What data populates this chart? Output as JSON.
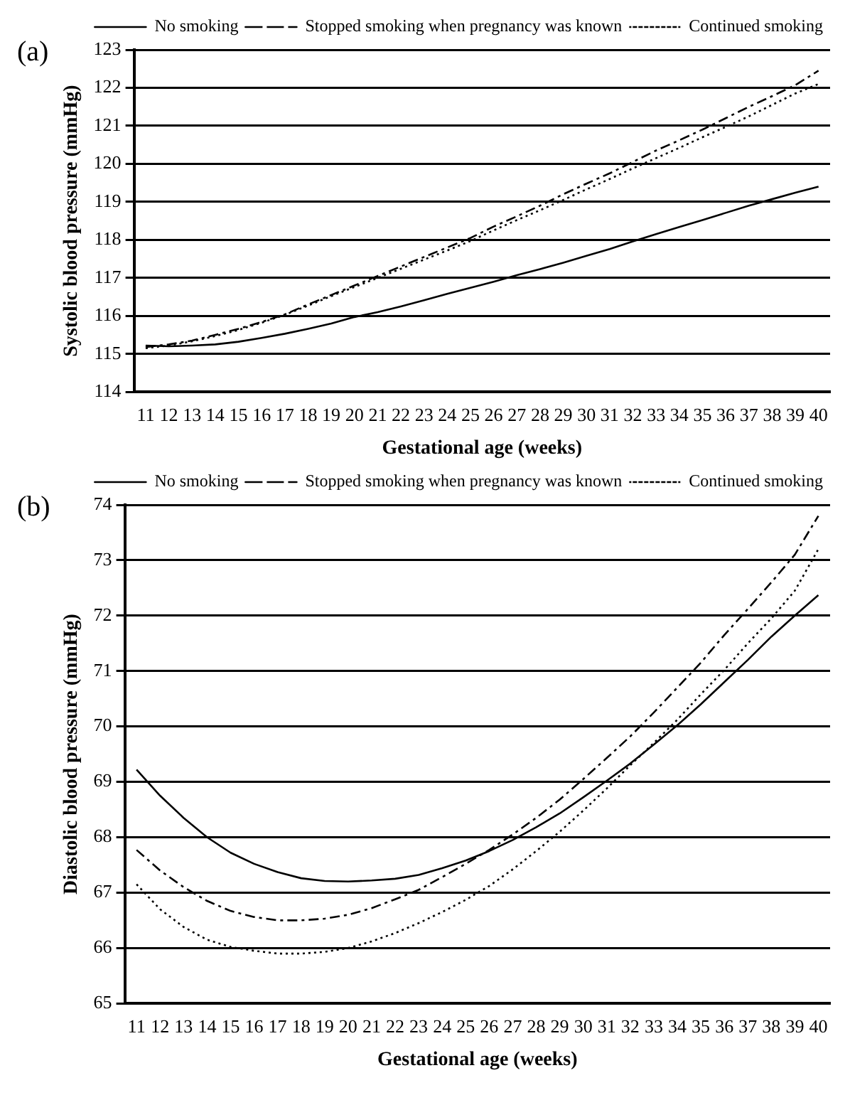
{
  "chart_data": [
    {
      "type": "line",
      "annotations": [
        "(a)"
      ],
      "xlabel": "Gestational age (weeks)",
      "ylabel": "Systolic blood pressure (mmHg)",
      "categories": [
        "11",
        "12",
        "13",
        "14",
        "15",
        "16",
        "17",
        "18",
        "19",
        "20",
        "21",
        "22",
        "23",
        "24",
        "25",
        "26",
        "27",
        "28",
        "29",
        "30",
        "31",
        "32",
        "33",
        "34",
        "35",
        "36",
        "37",
        "38",
        "39",
        "40"
      ],
      "ylim": [
        114,
        123
      ],
      "yticks": [
        114,
        115,
        116,
        117,
        118,
        119,
        120,
        121,
        122,
        123
      ],
      "grid": "y",
      "legend": "top",
      "marker": "none",
      "series": [
        {
          "name": "No smoking",
          "color": "#000000",
          "line_style": "solid",
          "values": [
            115.22,
            115.2,
            115.22,
            115.25,
            115.32,
            115.42,
            115.53,
            115.66,
            115.8,
            115.97,
            116.1,
            116.25,
            116.41,
            116.58,
            116.74,
            116.9,
            117.07,
            117.23,
            117.4,
            117.58,
            117.76,
            117.96,
            118.15,
            118.34,
            118.52,
            118.71,
            118.9,
            119.07,
            119.24,
            119.4
          ]
        },
        {
          "name": "Stopped smoking when pregnancy was known",
          "color": "#000000",
          "line_style": "dashed",
          "values": [
            115.18,
            115.25,
            115.35,
            115.5,
            115.66,
            115.84,
            116.04,
            116.3,
            116.55,
            116.8,
            117.05,
            117.3,
            117.55,
            117.8,
            118.05,
            118.35,
            118.62,
            118.9,
            119.2,
            119.48,
            119.75,
            120.05,
            120.35,
            120.62,
            120.9,
            121.2,
            121.5,
            121.78,
            122.07,
            122.45
          ]
        },
        {
          "name": "Continued smoking",
          "color": "#000000",
          "line_style": "dotted",
          "values": [
            115.15,
            115.22,
            115.33,
            115.47,
            115.63,
            115.82,
            116.03,
            116.27,
            116.52,
            116.76,
            117.0,
            117.24,
            117.48,
            117.72,
            117.97,
            118.25,
            118.52,
            118.78,
            119.05,
            119.33,
            119.6,
            119.88,
            120.15,
            120.42,
            120.7,
            120.97,
            121.25,
            121.55,
            121.85,
            122.1
          ]
        }
      ]
    },
    {
      "type": "line",
      "annotations": [
        "(b)"
      ],
      "xlabel": "Gestational age (weeks)",
      "ylabel": "Diastolic blood pressure (mmHg)",
      "categories": [
        "11",
        "12",
        "13",
        "14",
        "15",
        "16",
        "17",
        "18",
        "19",
        "20",
        "21",
        "22",
        "23",
        "24",
        "25",
        "26",
        "27",
        "28",
        "29",
        "30",
        "31",
        "32",
        "33",
        "34",
        "35",
        "36",
        "37",
        "38",
        "39",
        "40"
      ],
      "ylim": [
        65,
        74
      ],
      "yticks": [
        65,
        66,
        67,
        68,
        69,
        70,
        71,
        72,
        73,
        74
      ],
      "grid": "y",
      "legend": "top",
      "marker": "none",
      "series": [
        {
          "name": "No smoking",
          "color": "#000000",
          "line_style": "solid",
          "values": [
            69.22,
            68.75,
            68.35,
            68.0,
            67.72,
            67.52,
            67.37,
            67.26,
            67.21,
            67.2,
            67.22,
            67.25,
            67.32,
            67.44,
            67.58,
            67.75,
            67.95,
            68.18,
            68.43,
            68.72,
            69.02,
            69.33,
            69.67,
            70.02,
            70.4,
            70.8,
            71.2,
            71.62,
            72.0,
            72.37
          ]
        },
        {
          "name": "Stopped smoking when pregnancy was known",
          "color": "#000000",
          "line_style": "dashed",
          "values": [
            67.77,
            67.4,
            67.1,
            66.85,
            66.67,
            66.56,
            66.5,
            66.5,
            66.53,
            66.6,
            66.72,
            66.88,
            67.05,
            67.28,
            67.52,
            67.77,
            68.05,
            68.35,
            68.68,
            69.05,
            69.43,
            69.82,
            70.25,
            70.7,
            71.15,
            71.65,
            72.12,
            72.6,
            73.1,
            73.8
          ]
        },
        {
          "name": "Continued smoking",
          "color": "#000000",
          "line_style": "dotted",
          "values": [
            67.15,
            66.7,
            66.38,
            66.15,
            66.02,
            65.95,
            65.9,
            65.9,
            65.93,
            66.0,
            66.12,
            66.27,
            66.45,
            66.65,
            66.87,
            67.12,
            67.42,
            67.75,
            68.1,
            68.48,
            68.88,
            69.3,
            69.7,
            70.12,
            70.58,
            71.02,
            71.5,
            71.95,
            72.45,
            73.2
          ]
        }
      ]
    }
  ]
}
